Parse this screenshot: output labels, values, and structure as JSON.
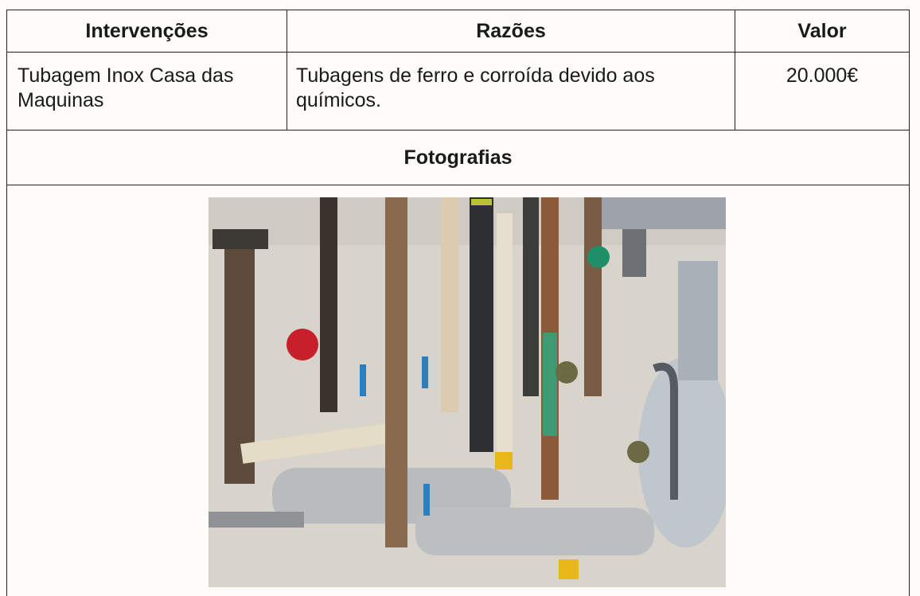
{
  "table": {
    "header": [
      "Intervenções",
      "Razões",
      "Valor"
    ],
    "rows": [
      [
        "Tubagem Inox Casa das Maquinas",
        "Tubagens de ferro e corroída devido aos químicos.",
        "20.000€"
      ]
    ],
    "section": "Fotografias"
  }
}
